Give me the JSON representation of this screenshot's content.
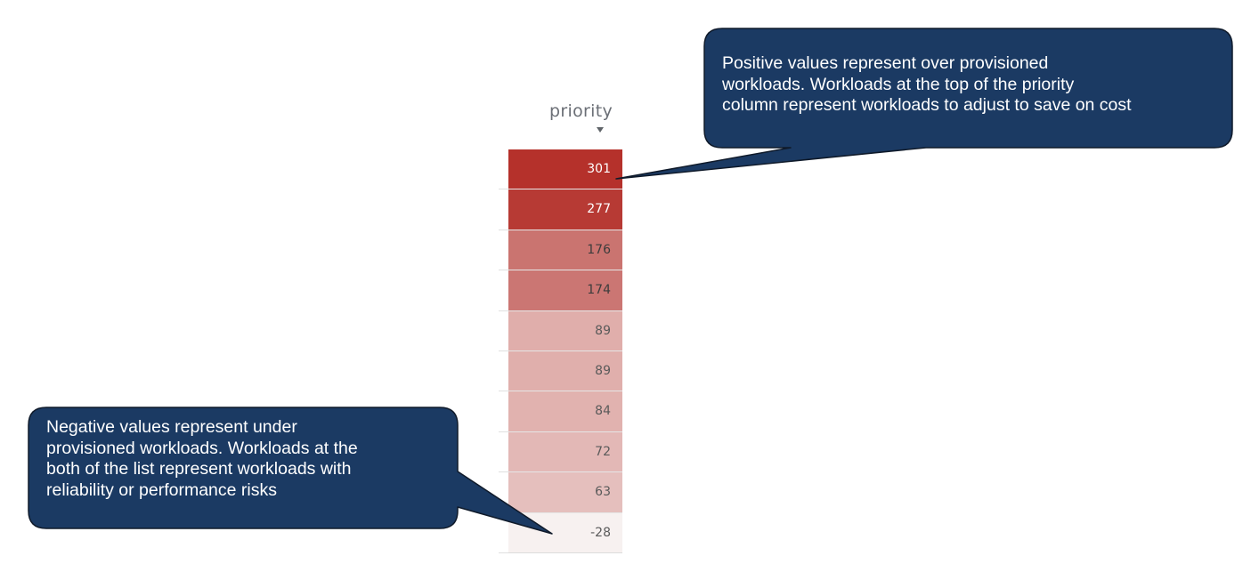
{
  "column": {
    "header": "priority",
    "sort_icon": "sort-descending-icon",
    "rows": [
      {
        "value": "301",
        "bg": "#b5312b",
        "fg": "#ffffff"
      },
      {
        "value": "277",
        "bg": "#b73a34",
        "fg": "#ffffff"
      },
      {
        "value": "176",
        "bg": "#ca7470",
        "fg": "#3c3c3c"
      },
      {
        "value": "174",
        "bg": "#cb7673",
        "fg": "#3c3c3c"
      },
      {
        "value": "89",
        "bg": "#e0aeab",
        "fg": "#5a5a5a"
      },
      {
        "value": "89",
        "bg": "#e0afac",
        "fg": "#5a5a5a"
      },
      {
        "value": "84",
        "bg": "#e1b2af",
        "fg": "#5a5a5a"
      },
      {
        "value": "72",
        "bg": "#e3b8b6",
        "fg": "#5a5a5a"
      },
      {
        "value": "63",
        "bg": "#e5bfbd",
        "fg": "#5a5a5a"
      },
      {
        "value": "-28",
        "bg": "#f7f1f0",
        "fg": "#5a5a5a"
      }
    ]
  },
  "callouts": {
    "top": {
      "text": "Positive values represent over provisioned\nworkloads. Workloads at the top of the priority\ncolumn represent workloads to adjust to save on cost"
    },
    "bottom": {
      "text": "Negative values represent under\nprovisioned workloads. Workloads at the\nboth of the list represent workloads with\nreliability or performance risks"
    },
    "fill": "#1b3a63",
    "stroke": "#0f1a2a"
  }
}
